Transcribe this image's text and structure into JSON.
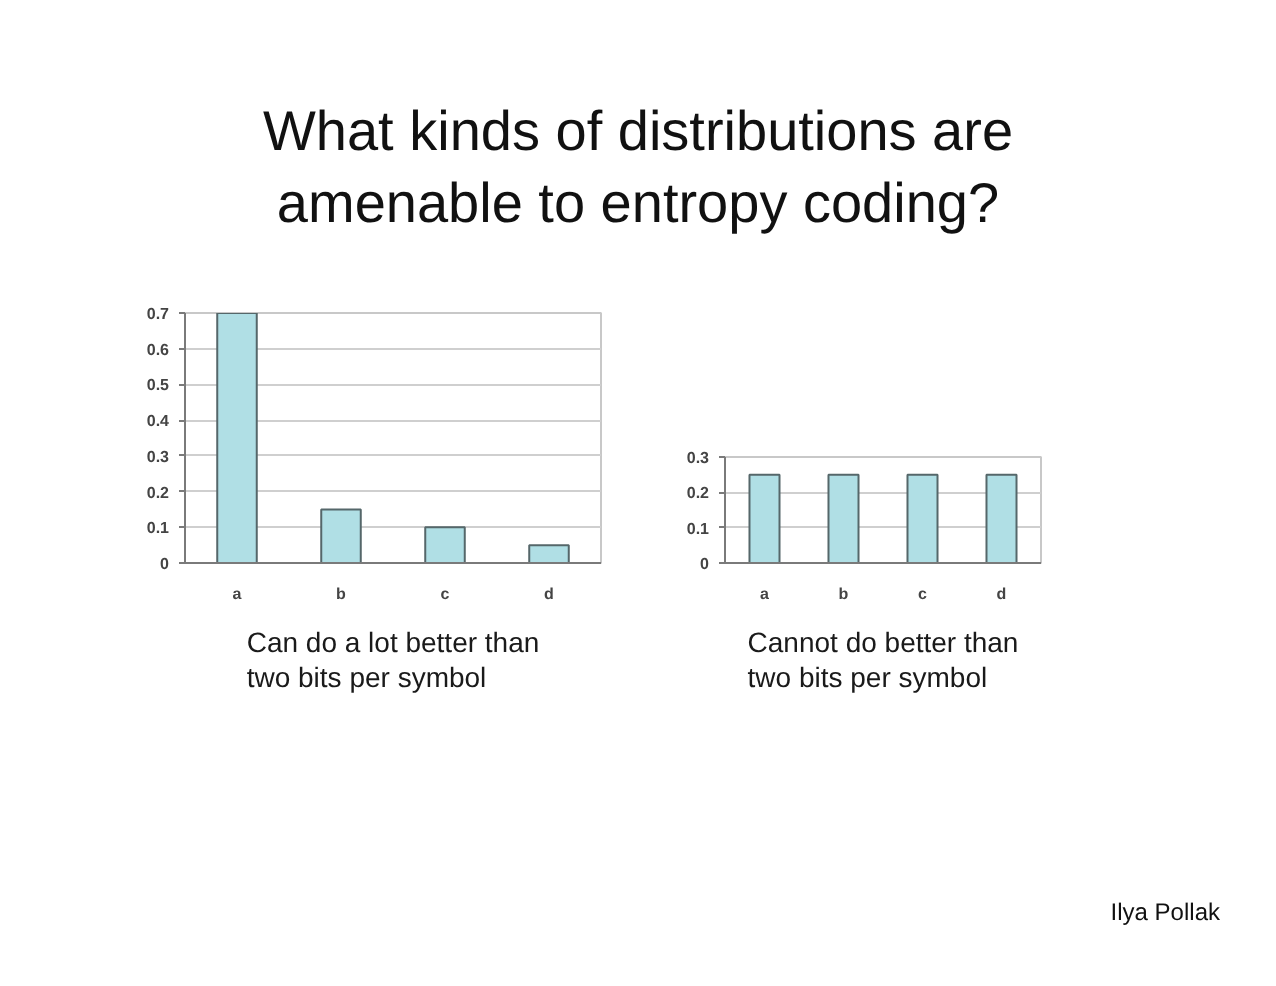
{
  "chart_data": [
    {
      "type": "bar",
      "title": "What kinds of distributions are amenable to entropy coding?",
      "categories": [
        "a",
        "b",
        "c",
        "d"
      ],
      "values": [
        0.7,
        0.15,
        0.1,
        0.05
      ],
      "color": "#b0dfe5",
      "ylim": [
        0,
        0.7
      ],
      "yticks": [
        0,
        0.1,
        0.2,
        0.3,
        0.4,
        0.5,
        0.6,
        0.7
      ],
      "grid": "y",
      "annotations": [
        "Can do a lot better than two bits per symbol"
      ]
    },
    {
      "type": "bar",
      "categories": [
        "a",
        "b",
        "c",
        "d"
      ],
      "values": [
        0.25,
        0.25,
        0.25,
        0.25
      ],
      "color": "#b0dfe5",
      "ylim": [
        0,
        0.3
      ],
      "yticks": [
        0,
        0.1,
        0.2,
        0.3
      ],
      "grid": "y",
      "annotations": [
        "Cannot do better than two bits per symbol",
        "Ilya Pollak"
      ]
    }
  ]
}
